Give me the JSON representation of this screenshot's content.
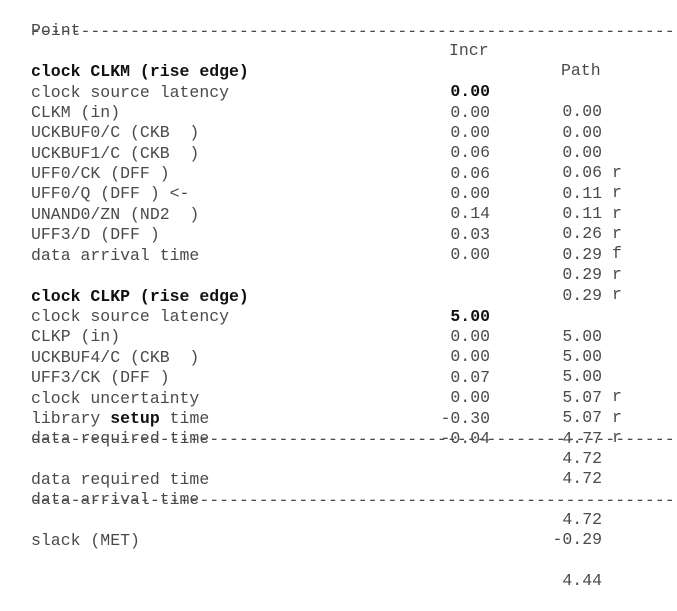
{
  "header": {
    "point": "Point",
    "incr": "Incr",
    "path": "Path"
  },
  "separator": "--------------------------------------------------------------------------------",
  "launch": [
    {
      "point": "clock CLKM (rise edge)",
      "incr": "0.00",
      "path": "0.00",
      "flag": "",
      "bold": true
    },
    {
      "point": "clock source latency",
      "incr": "0.00",
      "path": "0.00",
      "flag": ""
    },
    {
      "point": "CLKM (in)",
      "incr": "0.00",
      "path": "0.00",
      "flag": "r"
    },
    {
      "point": "UCKBUF0/C (CKB  )",
      "incr": "0.06",
      "path": "0.06",
      "flag": "r"
    },
    {
      "point": "UCKBUF1/C (CKB  )",
      "incr": "0.06",
      "path": "0.11",
      "flag": "r"
    },
    {
      "point": "UFF0/CK (DFF )",
      "incr": "0.00",
      "path": "0.11",
      "flag": "r"
    },
    {
      "point": "UFF0/Q (DFF ) <-",
      "incr": "0.14",
      "path": "0.26",
      "flag": "f"
    },
    {
      "point": "UNAND0/ZN (ND2  )",
      "incr": "0.03",
      "path": "0.29",
      "flag": "r"
    },
    {
      "point": "UFF3/D (DFF )",
      "incr": "0.00",
      "path": "0.29",
      "flag": "r"
    },
    {
      "point": "data arrival time",
      "incr": "",
      "path": "0.29",
      "flag": ""
    }
  ],
  "capture": [
    {
      "point": "clock CLKP (rise edge)",
      "incr": "5.00",
      "path": "5.00",
      "flag": "",
      "bold": true
    },
    {
      "point": "clock source latency",
      "incr": "0.00",
      "path": "5.00",
      "flag": ""
    },
    {
      "point": "CLKP (in)",
      "incr": "0.00",
      "path": "5.00",
      "flag": "r"
    },
    {
      "point": "UCKBUF4/C (CKB  )",
      "incr": "0.07",
      "path": "5.07",
      "flag": "r"
    },
    {
      "point": "UFF3/CK (DFF )",
      "incr": "0.00",
      "path": "5.07",
      "flag": "r"
    },
    {
      "point": "clock uncertainty",
      "incr": "-0.30",
      "path": "4.77",
      "flag": ""
    },
    {
      "point_prefix": "library ",
      "point_bold": "setup",
      "point_suffix": " time",
      "incr": "-0.04",
      "path": "4.72",
      "flag": ""
    },
    {
      "point": "data required time",
      "incr": "",
      "path": "4.72",
      "flag": ""
    }
  ],
  "summary": [
    {
      "point": "data required time",
      "incr": "",
      "path": "4.72",
      "flag": ""
    },
    {
      "point": "data arrival time",
      "incr": "",
      "path": "-0.29",
      "flag": ""
    }
  ],
  "slack": {
    "point": "slack (MET)",
    "incr": "",
    "path": "4.44",
    "flag": ""
  }
}
